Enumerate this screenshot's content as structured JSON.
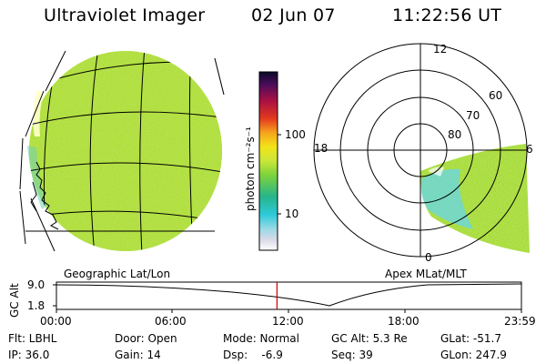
{
  "header": {
    "title": "Ultraviolet Imager",
    "date": "02 Jun 07",
    "time": "11:22:56 UT"
  },
  "colorbar": {
    "unit_label": "photon cm⁻²s⁻¹",
    "ticks": [
      "100",
      "10"
    ]
  },
  "panels": {
    "left_caption": "Geographic Lat/Lon",
    "right_caption": "Apex MLat/MLT"
  },
  "polar": {
    "mlt_labels": {
      "top": "12",
      "left": "18",
      "right": "6",
      "bottom": "0"
    },
    "lat_labels": [
      "60",
      "70",
      "80"
    ]
  },
  "orbit": {
    "axis_label": "GC Alt",
    "y_ticks": [
      "9.0",
      "1.8"
    ],
    "time_ticks": [
      "00:00",
      "06:00",
      "12:00",
      "18:00",
      "23:59"
    ],
    "current_time_fraction": 0.4743,
    "marker_color": "#cc0000"
  },
  "info": {
    "flt": "Flt: LBHL",
    "ip": "IP: 36.0",
    "door": "Door: Open",
    "gain": "Gain: 14",
    "mode": "Mode: Normal",
    "dsp": "Dsp:    -6.9",
    "gcalt": "GC Alt: 5.3 Re",
    "seq": "Seq: 39",
    "glat": "GLat: -51.7",
    "glon": "GLon: 247.9"
  },
  "colors": {
    "emission_base": "#a8dc3c",
    "emission_low": "#5cd8cc",
    "grid": "#000000"
  }
}
